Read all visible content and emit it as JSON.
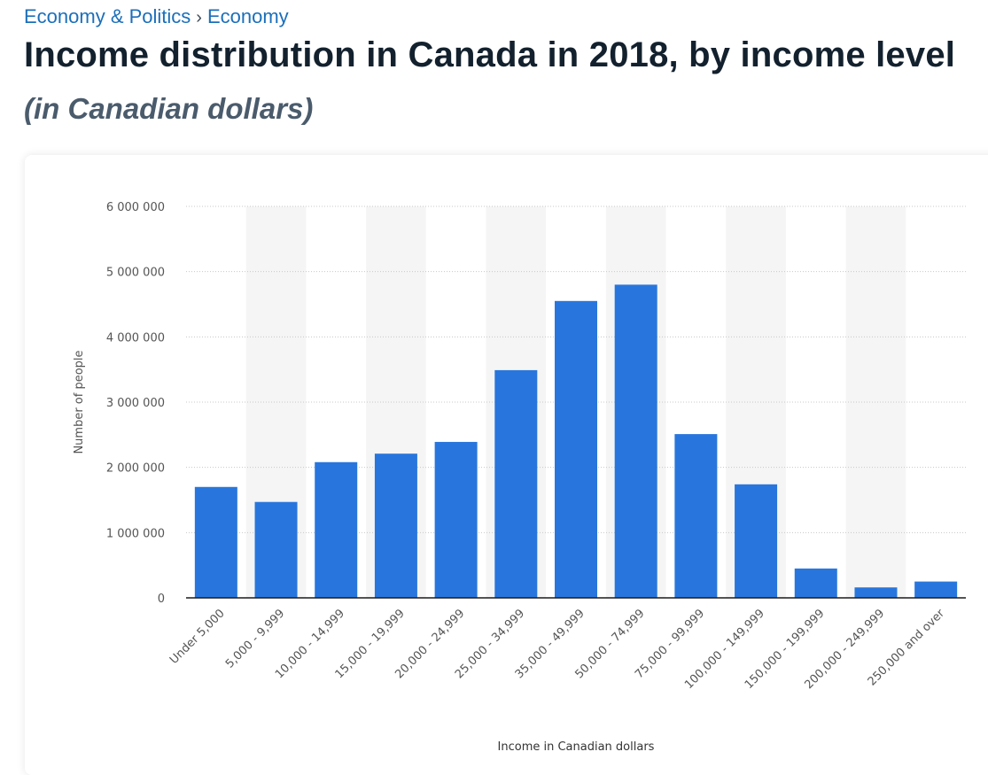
{
  "breadcrumb": {
    "items": [
      "Economy & Politics",
      "Economy"
    ],
    "separator": "›"
  },
  "page_title": "Income distribution in Canada in 2018, by income level",
  "page_subtitle": "(in Canadian dollars)",
  "colors": {
    "bar": "#2876dd",
    "axis": "#1a1a1a",
    "grid": "#c8c8c8",
    "band": "#f5f5f5",
    "tick_text": "#555555"
  },
  "chart_data": {
    "type": "bar",
    "title": "Income distribution in Canada in 2018, by income level",
    "xlabel": "Income in Canadian dollars",
    "ylabel": "Number of people",
    "ylim": [
      0,
      6000000
    ],
    "yticks": [
      0,
      1000000,
      2000000,
      3000000,
      4000000,
      5000000,
      6000000
    ],
    "ytick_labels": [
      "0",
      "1 000 000",
      "2 000 000",
      "3 000 000",
      "4 000 000",
      "5 000 000",
      "6 000 000"
    ],
    "grid": true,
    "categories": [
      "Under 5,000",
      "5,000 - 9,999",
      "10,000 - 14,999",
      "15,000 - 19,999",
      "20,000 - 24,999",
      "25,000 - 34,999",
      "35,000 - 49,999",
      "50,000 - 74,999",
      "75,000 - 99,999",
      "100,000 - 149,999",
      "150,000 - 199,999",
      "200,000 - 249,999",
      "250,000 and over"
    ],
    "values": [
      1700000,
      1470000,
      2080000,
      2210000,
      2390000,
      3490000,
      4550000,
      4800000,
      2510000,
      1740000,
      450000,
      160000,
      250000
    ]
  }
}
